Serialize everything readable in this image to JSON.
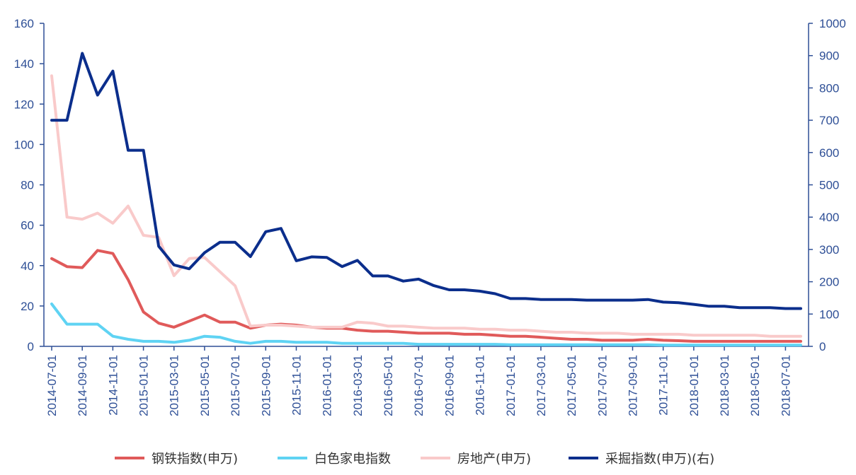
{
  "chart_data": {
    "type": "line",
    "x": [
      "2014-07-01",
      "2014-08-01",
      "2014-09-01",
      "2014-10-01",
      "2014-11-01",
      "2014-12-01",
      "2015-01-01",
      "2015-02-01",
      "2015-03-01",
      "2015-04-01",
      "2015-05-01",
      "2015-06-01",
      "2015-07-01",
      "2015-08-01",
      "2015-09-01",
      "2015-10-01",
      "2015-11-01",
      "2015-12-01",
      "2016-01-01",
      "2016-02-01",
      "2016-03-01",
      "2016-04-01",
      "2016-05-01",
      "2016-06-01",
      "2016-07-01",
      "2016-08-01",
      "2016-09-01",
      "2016-10-01",
      "2016-11-01",
      "2016-12-01",
      "2017-01-01",
      "2017-02-01",
      "2017-03-01",
      "2017-04-01",
      "2017-05-01",
      "2017-06-01",
      "2017-07-01",
      "2017-08-01",
      "2017-09-01",
      "2017-10-01",
      "2017-11-01",
      "2017-12-01",
      "2018-01-01",
      "2018-02-01",
      "2018-03-01",
      "2018-04-01",
      "2018-05-01",
      "2018-06-01",
      "2018-07-01",
      "2018-08-01"
    ],
    "x_tick_labels": [
      "2014-07-01",
      "2014-09-01",
      "2014-11-01",
      "2015-01-01",
      "2015-03-01",
      "2015-05-01",
      "2015-07-01",
      "2015-09-01",
      "2015-11-01",
      "2016-01-01",
      "2016-03-01",
      "2016-05-01",
      "2016-07-01",
      "2016-09-01",
      "2016-11-01",
      "2017-01-01",
      "2017-03-01",
      "2017-05-01",
      "2017-07-01",
      "2017-09-01",
      "2017-11-01",
      "2018-01-01",
      "2018-03-01",
      "2018-05-01",
      "2018-07-01"
    ],
    "y_left": {
      "ylim": [
        0,
        160
      ],
      "ticks": [
        "0",
        "20",
        "40",
        "60",
        "80",
        "100",
        "120",
        "140",
        "160"
      ]
    },
    "y_right": {
      "ylim": [
        0,
        1000
      ],
      "ticks": [
        "0",
        "100",
        "200",
        "300",
        "400",
        "500",
        "600",
        "700",
        "800",
        "900",
        "1000"
      ]
    },
    "grid": false,
    "legend_position": "bottom",
    "series": [
      {
        "name": "钢铁指数(申万)",
        "axis": "left",
        "color": "#e05a5a",
        "values": [
          43.5,
          39.5,
          39,
          47.5,
          46,
          33,
          17,
          11.5,
          9.5,
          12.5,
          15.5,
          12,
          12,
          9,
          10.5,
          11,
          10.5,
          9.5,
          9,
          9,
          8,
          7.5,
          7.5,
          7,
          6.5,
          6.5,
          6.5,
          6,
          6,
          5.5,
          5,
          5,
          4.5,
          4,
          3.5,
          3.5,
          3,
          3,
          3,
          3.5,
          3,
          2.8,
          2.5,
          2.5,
          2.5,
          2.5,
          2.5,
          2.5,
          2.5,
          2.5
        ]
      },
      {
        "name": "白色家电指数",
        "axis": "left",
        "color": "#5fd3f3",
        "values": [
          21,
          11,
          11,
          11,
          5,
          3.5,
          2.5,
          2.5,
          2,
          3,
          5,
          4.5,
          2.5,
          1.5,
          2.5,
          2.5,
          2,
          2,
          2,
          1.5,
          1.5,
          1.5,
          1.5,
          1.5,
          1,
          1,
          1,
          1,
          1,
          1,
          0.8,
          0.8,
          0.8,
          0.8,
          0.8,
          0.8,
          0.8,
          0.8,
          0.8,
          0.8,
          0.6,
          0.6,
          0.6,
          0.6,
          0.6,
          0.6,
          0.6,
          0.6,
          0.6,
          0.6
        ]
      },
      {
        "name": "房地产(申万)",
        "axis": "left",
        "color": "#f9caca",
        "values": [
          134,
          64,
          63,
          66,
          61,
          69.5,
          55,
          54,
          35,
          43.5,
          44,
          37,
          30,
          10,
          10.5,
          10.5,
          10,
          9.5,
          9.5,
          9.5,
          12,
          11.5,
          10,
          10,
          9.5,
          9,
          9,
          9,
          8.5,
          8.5,
          8,
          8,
          7.5,
          7,
          7,
          6.5,
          6.5,
          6.5,
          6,
          6,
          6,
          6,
          5.5,
          5.5,
          5.5,
          5.5,
          5.5,
          5,
          5,
          5
        ]
      },
      {
        "name": "采掘指数(申万)(右)",
        "axis": "right",
        "color": "#0b2e8c",
        "values": [
          700,
          700,
          907,
          778,
          852,
          607,
          607,
          310,
          252,
          240,
          290,
          322,
          322,
          278,
          355,
          365,
          265,
          277,
          275,
          247,
          266,
          218,
          218,
          202,
          208,
          188,
          175,
          175,
          171,
          163,
          148,
          148,
          145,
          145,
          145,
          143,
          143,
          143,
          143,
          145,
          137,
          135,
          130,
          124,
          124,
          120,
          120,
          120,
          117,
          117
        ]
      }
    ]
  }
}
